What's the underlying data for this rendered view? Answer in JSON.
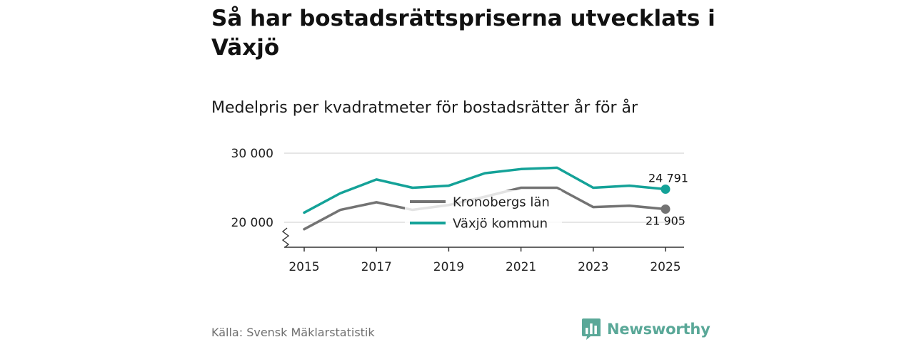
{
  "header": {
    "title": "Så har bostadsrättspriserna utvecklats i Växjö",
    "subtitle": "Medelpris per kvadratmeter för bostadsrätter år för år"
  },
  "footer": {
    "source": "Källa: Svensk Mäklarstatistik",
    "brand": "Newsworthy"
  },
  "colors": {
    "kronoberg": "#737373",
    "vaxjo": "#14a298",
    "grid": "#dddddd",
    "axis": "#333333",
    "brand": "#5aa898"
  },
  "chart_data": {
    "type": "line",
    "title": "Medelpris per kvadratmeter för bostadsrätter år för år",
    "xlabel": "",
    "ylabel": "",
    "x": [
      2015,
      2016,
      2017,
      2018,
      2019,
      2020,
      2021,
      2022,
      2023,
      2024,
      2025
    ],
    "xticks": [
      "2015",
      "2017",
      "2019",
      "2021",
      "2023",
      "2025"
    ],
    "yticks": [
      {
        "value": 20000,
        "label": "20 000"
      },
      {
        "value": 30000,
        "label": "30 000"
      }
    ],
    "ylim": [
      16500,
      30000
    ],
    "axis_break": true,
    "grid": true,
    "legend_position": "center",
    "series": [
      {
        "name": "Kronobergs län",
        "values": [
          19000,
          21800,
          22900,
          21800,
          22500,
          23700,
          25000,
          25000,
          22200,
          22400,
          21905
        ],
        "end_label": "21 905"
      },
      {
        "name": "Växjö kommun",
        "values": [
          21400,
          24200,
          26200,
          25000,
          25300,
          27100,
          27700,
          27900,
          25000,
          25300,
          24791
        ],
        "end_label": "24 791"
      }
    ]
  }
}
